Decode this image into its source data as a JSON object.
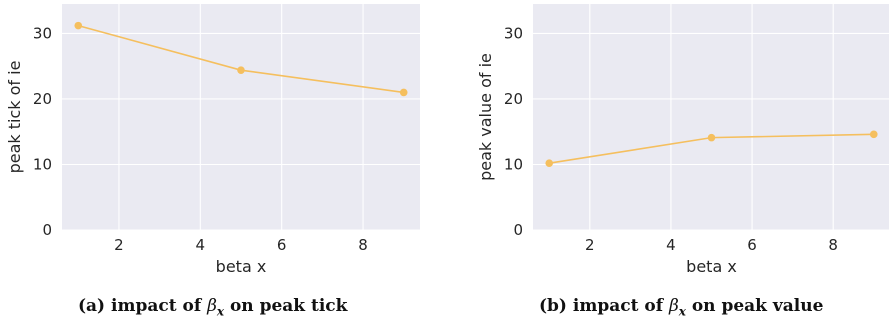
{
  "chart_data": [
    {
      "type": "line",
      "xlabel": "beta x",
      "ylabel": "peak tick of ie",
      "xlim": [
        0.6,
        9.4
      ],
      "ylim": [
        0,
        34.5
      ],
      "xticks": [
        2,
        4,
        6,
        8
      ],
      "yticks": [
        0,
        10,
        20,
        30
      ],
      "grid": true,
      "series": [
        {
          "x": [
            1,
            5,
            9
          ],
          "values": [
            31.2,
            24.4,
            21.0
          ],
          "color": "#f5bf5e"
        }
      ]
    },
    {
      "type": "line",
      "xlabel": "beta x",
      "ylabel": "peak value of ie",
      "xlim": [
        0.6,
        9.4
      ],
      "ylim": [
        0,
        34.5
      ],
      "xticks": [
        2,
        4,
        6,
        8
      ],
      "yticks": [
        0,
        10,
        20,
        30
      ],
      "grid": true,
      "series": [
        {
          "x": [
            1,
            5,
            9
          ],
          "values": [
            10.2,
            14.1,
            14.6
          ],
          "color": "#f5bf5e"
        }
      ]
    }
  ],
  "captions": [
    {
      "prefix": "(a) impact of ",
      "symbol": "β",
      "subscript": "x",
      "suffix": " on peak tick"
    },
    {
      "prefix": "(b) impact of ",
      "symbol": "β",
      "subscript": "x",
      "suffix": " on peak value"
    }
  ],
  "colors": {
    "plot_background": "#eaeaf2",
    "grid": "#ffffff",
    "line": "#f5bf5e"
  }
}
